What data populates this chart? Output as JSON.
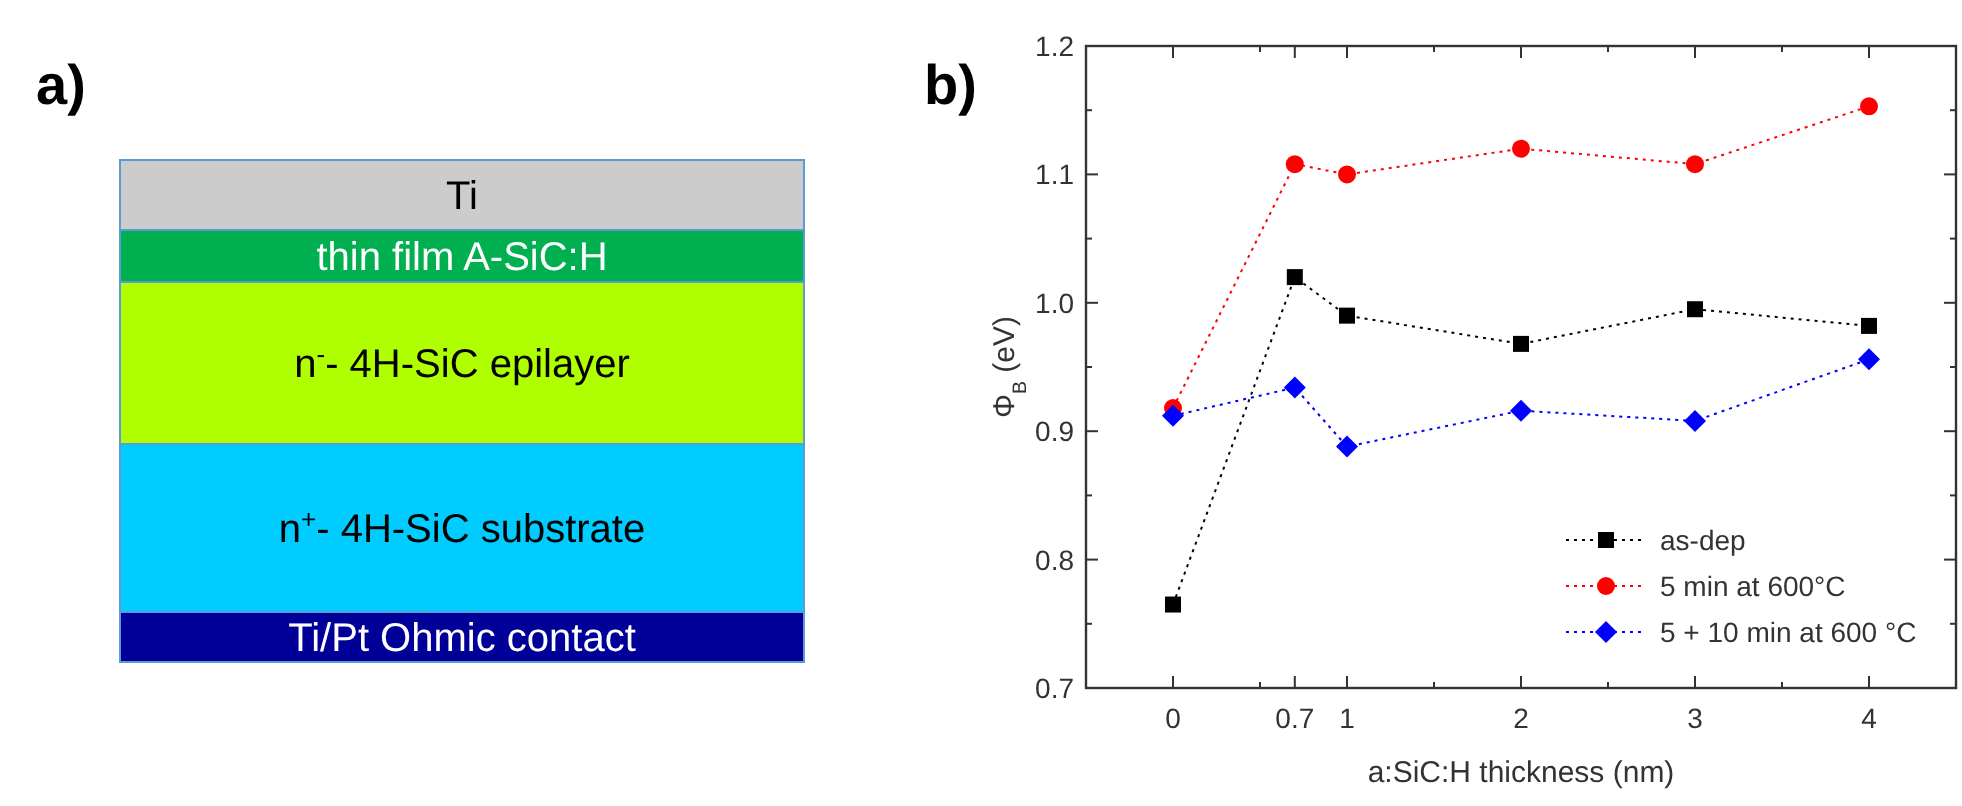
{
  "chart_data": [
    {
      "type": "other",
      "title": "a)",
      "categories": [
        "Ti",
        "thin film A-SiC:H",
        "n$^{-}$- 4H-SiC epilayer",
        "n$^{+}$- 4H-SiC substrate",
        "Ti/Pt Ohmic contact"
      ],
      "colors": [
        "#cccccc",
        "#00b050",
        "#b0ff00",
        "#00ccff",
        "#000099"
      ]
    },
    {
      "type": "line",
      "title": "b)",
      "xlabel": "a:SiC:H thickness (nm)",
      "ylabel": "Φ$_{B}$ (eV)",
      "x": [
        0,
        0.7,
        1,
        2,
        3,
        4
      ],
      "xlim": [
        -0.5,
        4.5
      ],
      "xticks": [
        0,
        {
          "value": 0.5,
          "label": null
        },
        0.7,
        1,
        {
          "value": 1.5,
          "label": null
        },
        2,
        {
          "value": 2.5,
          "label": null
        },
        3,
        {
          "value": 3.5,
          "label": null
        },
        4
      ],
      "ylim": [
        0.7,
        1.2
      ],
      "yticks": [
        0.7,
        {
          "value": 0.75,
          "label": null
        },
        0.8,
        {
          "value": 0.85,
          "label": null
        },
        0.9,
        {
          "value": 0.95,
          "label": null
        },
        {
          "value": 1,
          "label": "1.0"
        },
        {
          "value": 1.05,
          "label": null
        },
        1.1,
        {
          "value": 1.15,
          "label": null
        },
        1.2
      ],
      "grid": false,
      "legend": "bottom right",
      "line_style": "dotted",
      "series": [
        {
          "name": "as-dep",
          "color": "#000000",
          "marker": "square",
          "values": [
            0.765,
            1.02,
            0.99,
            0.968,
            0.995,
            0.982
          ]
        },
        {
          "name": "5 min at 600°C",
          "color": "#ff0000",
          "marker": "circle",
          "values": [
            0.918,
            1.108,
            1.1,
            1.12,
            1.108,
            1.153
          ]
        },
        {
          "name": "5 + 10 min at 600 °C",
          "color": "#0000ff",
          "marker": "diamond",
          "values": [
            0.912,
            0.934,
            0.888,
            0.916,
            0.908,
            0.956
          ]
        }
      ]
    }
  ]
}
